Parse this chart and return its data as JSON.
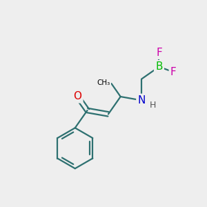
{
  "background_color": "#eeeeee",
  "atom_colors": {
    "C": "#000000",
    "N": "#0000cc",
    "O": "#dd0000",
    "B": "#00bb00",
    "F": "#cc00aa",
    "H": "#555555"
  },
  "bond_color": "#2d7070",
  "figsize": [
    3.0,
    3.0
  ],
  "dpi": 100,
  "bond_lw": 1.6
}
